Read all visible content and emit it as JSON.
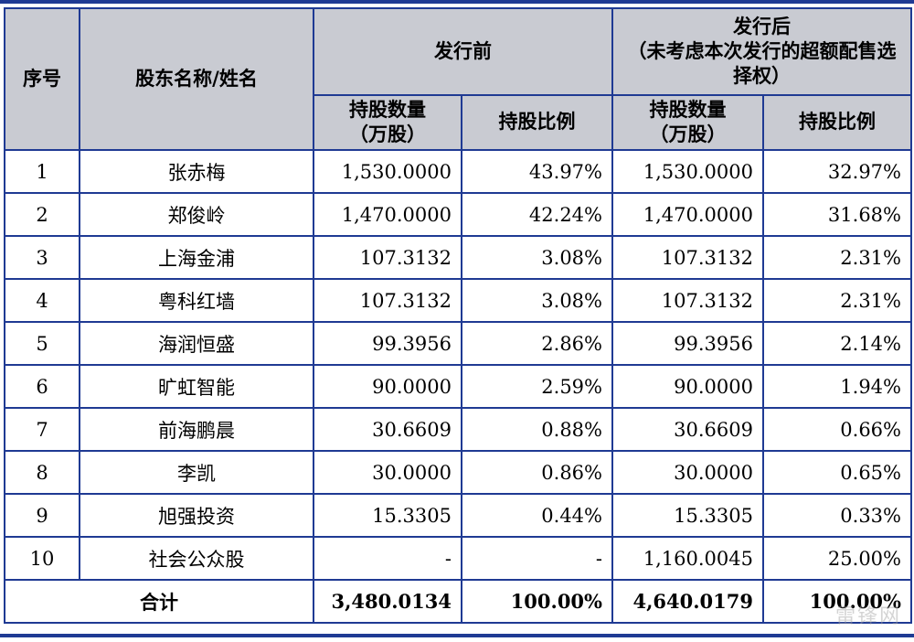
{
  "header": {
    "seq": "序号",
    "name": "股东名称/姓名",
    "before": "发行前",
    "after": "发行后\n（未考虑本次发行的超额配售选择权）",
    "shares": "持股数量\n（万股）",
    "ratio": "持股比例"
  },
  "rows": [
    {
      "seq": "1",
      "name": "张赤梅",
      "before_shares": "1,530.0000",
      "before_ratio": "43.97%",
      "after_shares": "1,530.0000",
      "after_ratio": "32.97%"
    },
    {
      "seq": "2",
      "name": "郑俊岭",
      "before_shares": "1,470.0000",
      "before_ratio": "42.24%",
      "after_shares": "1,470.0000",
      "after_ratio": "31.68%"
    },
    {
      "seq": "3",
      "name": "上海金浦",
      "before_shares": "107.3132",
      "before_ratio": "3.08%",
      "after_shares": "107.3132",
      "after_ratio": "2.31%"
    },
    {
      "seq": "4",
      "name": "粤科红墙",
      "before_shares": "107.3132",
      "before_ratio": "3.08%",
      "after_shares": "107.3132",
      "after_ratio": "2.31%"
    },
    {
      "seq": "5",
      "name": "海润恒盛",
      "before_shares": "99.3956",
      "before_ratio": "2.86%",
      "after_shares": "99.3956",
      "after_ratio": "2.14%"
    },
    {
      "seq": "6",
      "name": "旷虹智能",
      "before_shares": "90.0000",
      "before_ratio": "2.59%",
      "after_shares": "90.0000",
      "after_ratio": "1.94%"
    },
    {
      "seq": "7",
      "name": "前海鹏晨",
      "before_shares": "30.6609",
      "before_ratio": "0.88%",
      "after_shares": "30.6609",
      "after_ratio": "0.66%"
    },
    {
      "seq": "8",
      "name": "李凯",
      "before_shares": "30.0000",
      "before_ratio": "0.86%",
      "after_shares": "30.0000",
      "after_ratio": "0.65%"
    },
    {
      "seq": "9",
      "name": "旭强投资",
      "before_shares": "15.3305",
      "before_ratio": "0.44%",
      "after_shares": "15.3305",
      "after_ratio": "0.33%"
    },
    {
      "seq": "10",
      "name": "社会公众股",
      "before_shares": "-",
      "before_ratio": "-",
      "after_shares": "1,160.0045",
      "after_ratio": "25.00%"
    }
  ],
  "total": {
    "label": "合计",
    "before_shares": "3,480.0134",
    "before_ratio": "100.00%",
    "after_shares": "4,640.0179",
    "after_ratio": "100.00%"
  },
  "watermark": "雷锋网"
}
